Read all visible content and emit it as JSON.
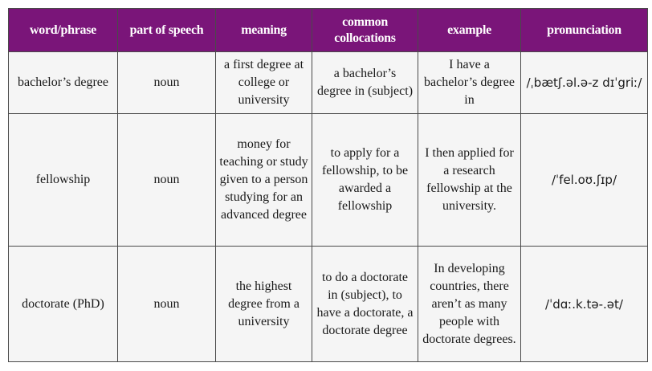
{
  "header": {
    "word": "word/phrase",
    "pos": "part of speech",
    "meaning": "meaning",
    "collocations": "common collocations",
    "example": "example",
    "pronunciation": "pronunciation"
  },
  "rows": [
    {
      "word": "bachelor’s degree",
      "pos": "noun",
      "meaning": "a first degree at college or university",
      "collocations": "a bachelor’s degree in (subject)",
      "example": "I have a bachelor’s degree in",
      "pronunciation": "/ˌbætʃ.əl.ə-z dɪˈgriː/"
    },
    {
      "word": "fellowship",
      "pos": "noun",
      "meaning": "money for teaching or study given to a person studying for an advanced degree",
      "collocations": "to apply for a fellowship, to be awarded a fellowship",
      "example": "I then applied for a research fellowship at the university.",
      "pronunciation": "/ˈfel.oʊ.ʃɪp/"
    },
    {
      "word": "doctorate (PhD)",
      "pos": "noun",
      "meaning": "the highest degree from a university",
      "collocations": "to do a doctorate in (subject), to have a doctorate, a doctorate degree",
      "example": "In developing countries, there aren’t as many people with doctorate degrees.",
      "pronunciation": "/ˈdɑː.k.tə-.ət/"
    }
  ],
  "colors": {
    "header_bg": "#7a1579",
    "header_text": "#ffffff",
    "cell_bg": "#f5f5f5",
    "border": "#4a4a4a"
  }
}
